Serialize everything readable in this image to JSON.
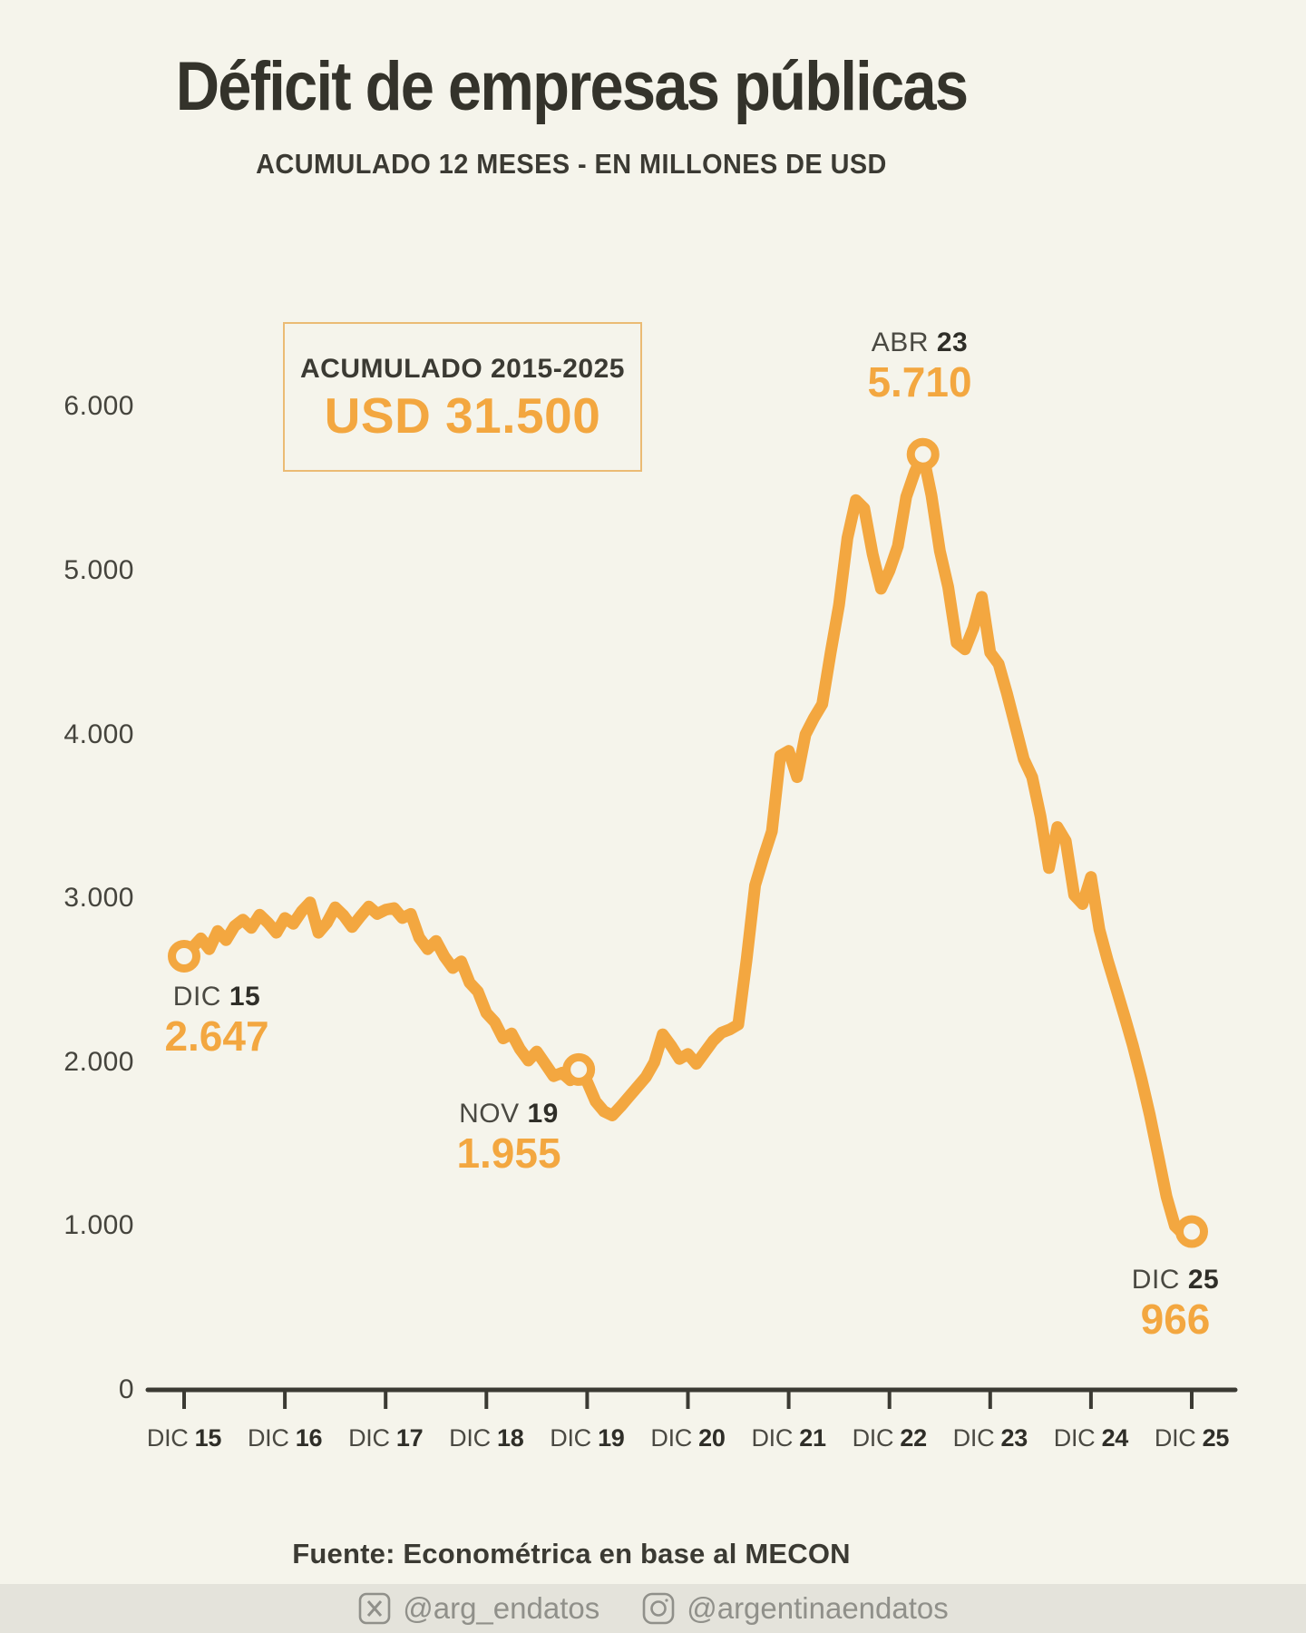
{
  "header": {
    "title": "Déficit de empresas públicas",
    "subtitle": "ACUMULADO 12 MESES - EN MILLONES DE USD"
  },
  "summary_box": {
    "label": "ACUMULADO 2015-2025",
    "value": "USD 31.500"
  },
  "colors": {
    "accent_orange": "#F3A740",
    "ink": "#3B3A33",
    "background": "#F5F4EB",
    "muted_gray": "#90908A",
    "box_border": "#EBBB74"
  },
  "chart_data": {
    "type": "line",
    "title": "Déficit de empresas públicas",
    "subtitle": "Acumulado 12 meses - en millones de USD",
    "ylim": [
      0,
      6000
    ],
    "grid": false,
    "legend": "none",
    "y_ticks": [
      {
        "label": "6.000",
        "value": 6000
      },
      {
        "label": "5.000",
        "value": 5000
      },
      {
        "label": "4.000",
        "value": 4000
      },
      {
        "label": "3.000",
        "value": 3000
      },
      {
        "label": "2.000",
        "value": 2000
      },
      {
        "label": "1.000",
        "value": 1000
      },
      {
        "label": "0",
        "value": 0
      }
    ],
    "x_ticks": [
      {
        "prefix": "DIC",
        "year": "15",
        "month_index": 0
      },
      {
        "prefix": "DIC",
        "year": "16",
        "month_index": 12
      },
      {
        "prefix": "DIC",
        "year": "17",
        "month_index": 24
      },
      {
        "prefix": "DIC",
        "year": "18",
        "month_index": 36
      },
      {
        "prefix": "DIC",
        "year": "19",
        "month_index": 48
      },
      {
        "prefix": "DIC",
        "year": "20",
        "month_index": 60
      },
      {
        "prefix": "DIC",
        "year": "21",
        "month_index": 72
      },
      {
        "prefix": "DIC",
        "year": "22",
        "month_index": 84
      },
      {
        "prefix": "DIC",
        "year": "23",
        "month_index": 96
      },
      {
        "prefix": "DIC",
        "year": "24",
        "month_index": 108
      },
      {
        "prefix": "DIC",
        "year": "25",
        "month_index": 120
      }
    ],
    "series": [
      {
        "name": "Déficit de empresas públicas acumulado 12 meses (millones USD)",
        "start_month": "DIC 15",
        "end_month": "DIC 25",
        "monthly_values": [
          2647,
          2700,
          2755,
          2690,
          2800,
          2745,
          2830,
          2870,
          2820,
          2900,
          2850,
          2790,
          2880,
          2845,
          2920,
          2975,
          2790,
          2850,
          2945,
          2895,
          2825,
          2890,
          2950,
          2905,
          2930,
          2940,
          2880,
          2905,
          2760,
          2690,
          2740,
          2645,
          2575,
          2615,
          2485,
          2430,
          2300,
          2245,
          2145,
          2175,
          2080,
          2010,
          2065,
          1990,
          1915,
          1935,
          1890,
          1955,
          1880,
          1760,
          1700,
          1675,
          1730,
          1790,
          1850,
          1910,
          2000,
          2170,
          2100,
          2020,
          2050,
          1990,
          2060,
          2130,
          2180,
          2200,
          2230,
          2630,
          3080,
          3250,
          3410,
          3870,
          3900,
          3740,
          4000,
          4100,
          4185,
          4500,
          4790,
          5200,
          5430,
          5380,
          5100,
          4890,
          5000,
          5150,
          5450,
          5600,
          5710,
          5460,
          5120,
          4900,
          4560,
          4520,
          4650,
          4840,
          4500,
          4430,
          4250,
          4050,
          3850,
          3740,
          3500,
          3185,
          3435,
          3350,
          3020,
          2965,
          3130,
          2810,
          2620,
          2450,
          2280,
          2100,
          1900,
          1680,
          1430,
          1180,
          1000,
          950,
          966
        ]
      }
    ],
    "annotations": [
      {
        "id": "dic15",
        "date_prefix": "DIC",
        "date_year": "15",
        "value_label": "2.647",
        "month_index": 0,
        "value": 2647
      },
      {
        "id": "nov19",
        "date_prefix": "NOV",
        "date_year": "19",
        "value_label": "1.955",
        "month_index": 47,
        "value": 1955
      },
      {
        "id": "abr23",
        "date_prefix": "ABR",
        "date_year": "23",
        "value_label": "5.710",
        "month_index": 88,
        "value": 5710
      },
      {
        "id": "dic25",
        "date_prefix": "DIC",
        "date_year": "25",
        "value_label": "966",
        "month_index": 120,
        "value": 966
      }
    ]
  },
  "footer": {
    "source": "Fuente: Econométrica en base al MECON",
    "social": [
      {
        "icon": "x-icon",
        "handle": "@arg_endatos"
      },
      {
        "icon": "instagram-icon",
        "handle": "@argentinaendatos"
      }
    ]
  }
}
